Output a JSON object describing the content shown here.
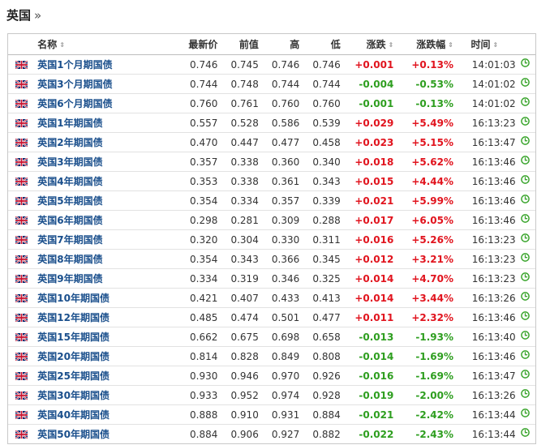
{
  "header": {
    "title": "英国",
    "raquo": "»"
  },
  "table": {
    "columns": {
      "name": "名称",
      "last": "最新价",
      "prev": "前值",
      "high": "高",
      "low": "低",
      "chg": "涨跌",
      "pct": "涨跌幅",
      "time": "时间"
    },
    "sort_glyph": "⇕",
    "colors": {
      "up": "#e1141e",
      "down": "#2e9e1f",
      "link": "#1a4f8c"
    },
    "icons": {
      "flag": "uk-flag-icon",
      "clock": "clock-icon"
    },
    "rows": [
      {
        "name": "英国1个月期国债",
        "last": "0.746",
        "prev": "0.745",
        "high": "0.746",
        "low": "0.746",
        "chg": "+0.001",
        "pct": "+0.13%",
        "time": "14:01:03",
        "dir": "up"
      },
      {
        "name": "英国3个月期国债",
        "last": "0.744",
        "prev": "0.748",
        "high": "0.744",
        "low": "0.744",
        "chg": "-0.004",
        "pct": "-0.53%",
        "time": "14:01:02",
        "dir": "down"
      },
      {
        "name": "英国6个月期国债",
        "last": "0.760",
        "prev": "0.761",
        "high": "0.760",
        "low": "0.760",
        "chg": "-0.001",
        "pct": "-0.13%",
        "time": "14:01:02",
        "dir": "down"
      },
      {
        "name": "英国1年期国债",
        "last": "0.557",
        "prev": "0.528",
        "high": "0.586",
        "low": "0.539",
        "chg": "+0.029",
        "pct": "+5.49%",
        "time": "16:13:23",
        "dir": "up"
      },
      {
        "name": "英国2年期国债",
        "last": "0.470",
        "prev": "0.447",
        "high": "0.477",
        "low": "0.458",
        "chg": "+0.023",
        "pct": "+5.15%",
        "time": "16:13:47",
        "dir": "up"
      },
      {
        "name": "英国3年期国债",
        "last": "0.357",
        "prev": "0.338",
        "high": "0.360",
        "low": "0.340",
        "chg": "+0.018",
        "pct": "+5.62%",
        "time": "16:13:46",
        "dir": "up"
      },
      {
        "name": "英国4年期国债",
        "last": "0.353",
        "prev": "0.338",
        "high": "0.361",
        "low": "0.343",
        "chg": "+0.015",
        "pct": "+4.44%",
        "time": "16:13:46",
        "dir": "up"
      },
      {
        "name": "英国5年期国债",
        "last": "0.354",
        "prev": "0.334",
        "high": "0.357",
        "low": "0.339",
        "chg": "+0.021",
        "pct": "+5.99%",
        "time": "16:13:46",
        "dir": "up"
      },
      {
        "name": "英国6年期国债",
        "last": "0.298",
        "prev": "0.281",
        "high": "0.309",
        "low": "0.288",
        "chg": "+0.017",
        "pct": "+6.05%",
        "time": "16:13:46",
        "dir": "up"
      },
      {
        "name": "英国7年期国债",
        "last": "0.320",
        "prev": "0.304",
        "high": "0.330",
        "low": "0.311",
        "chg": "+0.016",
        "pct": "+5.26%",
        "time": "16:13:23",
        "dir": "up"
      },
      {
        "name": "英国8年期国债",
        "last": "0.354",
        "prev": "0.343",
        "high": "0.366",
        "low": "0.345",
        "chg": "+0.012",
        "pct": "+3.21%",
        "time": "16:13:23",
        "dir": "up"
      },
      {
        "name": "英国9年期国债",
        "last": "0.334",
        "prev": "0.319",
        "high": "0.346",
        "low": "0.325",
        "chg": "+0.014",
        "pct": "+4.70%",
        "time": "16:13:23",
        "dir": "up"
      },
      {
        "name": "英国10年期国债",
        "last": "0.421",
        "prev": "0.407",
        "high": "0.433",
        "low": "0.413",
        "chg": "+0.014",
        "pct": "+3.44%",
        "time": "16:13:26",
        "dir": "up"
      },
      {
        "name": "英国12年期国债",
        "last": "0.485",
        "prev": "0.474",
        "high": "0.501",
        "low": "0.477",
        "chg": "+0.011",
        "pct": "+2.32%",
        "time": "16:13:46",
        "dir": "up"
      },
      {
        "name": "英国15年期国债",
        "last": "0.662",
        "prev": "0.675",
        "high": "0.698",
        "low": "0.658",
        "chg": "-0.013",
        "pct": "-1.93%",
        "time": "16:13:40",
        "dir": "down"
      },
      {
        "name": "英国20年期国债",
        "last": "0.814",
        "prev": "0.828",
        "high": "0.849",
        "low": "0.808",
        "chg": "-0.014",
        "pct": "-1.69%",
        "time": "16:13:46",
        "dir": "down"
      },
      {
        "name": "英国25年期国债",
        "last": "0.930",
        "prev": "0.946",
        "high": "0.970",
        "low": "0.926",
        "chg": "-0.016",
        "pct": "-1.69%",
        "time": "16:13:47",
        "dir": "down"
      },
      {
        "name": "英国30年期国债",
        "last": "0.933",
        "prev": "0.952",
        "high": "0.974",
        "low": "0.928",
        "chg": "-0.019",
        "pct": "-2.00%",
        "time": "16:13:26",
        "dir": "down"
      },
      {
        "name": "英国40年期国债",
        "last": "0.888",
        "prev": "0.910",
        "high": "0.931",
        "low": "0.884",
        "chg": "-0.021",
        "pct": "-2.42%",
        "time": "16:13:44",
        "dir": "down"
      },
      {
        "name": "英国50年期国债",
        "last": "0.884",
        "prev": "0.906",
        "high": "0.927",
        "low": "0.882",
        "chg": "-0.022",
        "pct": "-2.43%",
        "time": "16:13:44",
        "dir": "down"
      }
    ]
  }
}
